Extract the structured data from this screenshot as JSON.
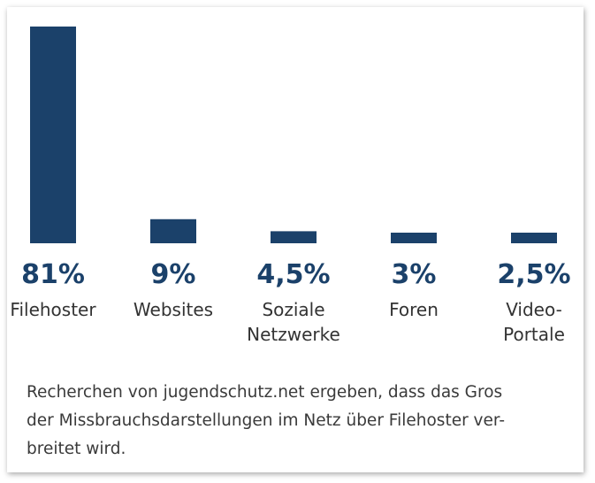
{
  "chart_data": {
    "type": "bar",
    "categories": [
      [
        "Filehoster"
      ],
      [
        "Websites"
      ],
      [
        "Soziale",
        "Netzwerke"
      ],
      [
        "Foren"
      ],
      [
        "Video-",
        "Portale"
      ]
    ],
    "values": [
      81,
      9,
      4.5,
      3,
      2.5
    ],
    "value_labels": [
      "81%",
      "9%",
      "4,5%",
      "3%",
      "2,5%"
    ],
    "ylim": [
      0,
      81
    ],
    "bar_color": "#1b416a",
    "grid": false,
    "legend": "none"
  },
  "caption": "Recherchen von jugendschutz.net ergeben, dass das Gros der Missbrauchsdarstellungen im Netz über Filehoster ver-breitet wird.",
  "caption_lines": [
    "Recherchen von jugendschutz.net ergeben, dass das Gros",
    "der Missbrauchsdarstellungen im Netz über Filehoster ver-",
    "breitet wird."
  ]
}
